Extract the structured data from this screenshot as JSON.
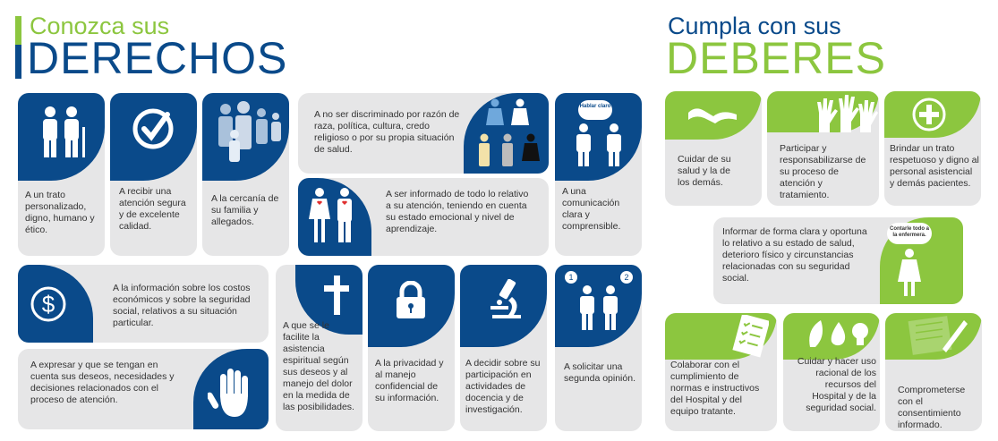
{
  "derechos": {
    "title_small": "Conozca sus",
    "title_big": "DERECHOS",
    "cards": [
      "A un trato personalizado, digno, humano y ético.",
      "A recibir una atención segura y de excelente calidad.",
      "A la cercanía de su familia y allegados.",
      "A no ser discriminado por razón de raza, política, cultura, credo religioso o por su propia situación de salud.",
      "A ser informado de todo lo relativo a su atención, teniendo en cuenta su estado emocional y nivel de aprendizaje.",
      "A una comunicación clara y comprensible.",
      "A la información sobre los costos económicos y sobre la seguridad social, relativos a su situación particular.",
      "A expresar y que se tengan en cuenta sus deseos, necesidades y decisiones relacionados con el proceso de atención.",
      "A que se le facilite la asistencia espiritual según sus deseos y al manejo del dolor en la medida de las posibilidades.",
      "A la privacidad y al manejo confidencial de su información.",
      "A decidir sobre su participación en actividades de docencia y de investigación.",
      "A solicitar una segunda opinión."
    ],
    "bubble_text": "Hablar claro"
  },
  "deberes": {
    "title_small": "Cumpla con sus",
    "title_big": "DEBERES",
    "cards": [
      "Cuidar de su salud y la de los demás.",
      "Participar y responsabilizarse de su proceso de atención y tratamiento.",
      "Brindar un trato respetuoso y digno al personal asistencial y demás pacientes.",
      "Informar de forma clara y oportuna lo relativo a su estado de salud, deterioro físico y circunstancias relacionadas con su seguridad social.",
      "Colaborar con el cumplimiento de normas e instructivos del Hospital y del equipo tratante.",
      "Cuidar y hacer uso racional de los recursos del Hospital y de la seguridad social.",
      "Comprometerse con el consentimiento informado."
    ],
    "bubble_text": "Contarle todo a la enfermera."
  },
  "colors": {
    "blue": "#0a4a8a",
    "green": "#8cc63f",
    "card": "#e6e6e7",
    "text": "#333333"
  }
}
